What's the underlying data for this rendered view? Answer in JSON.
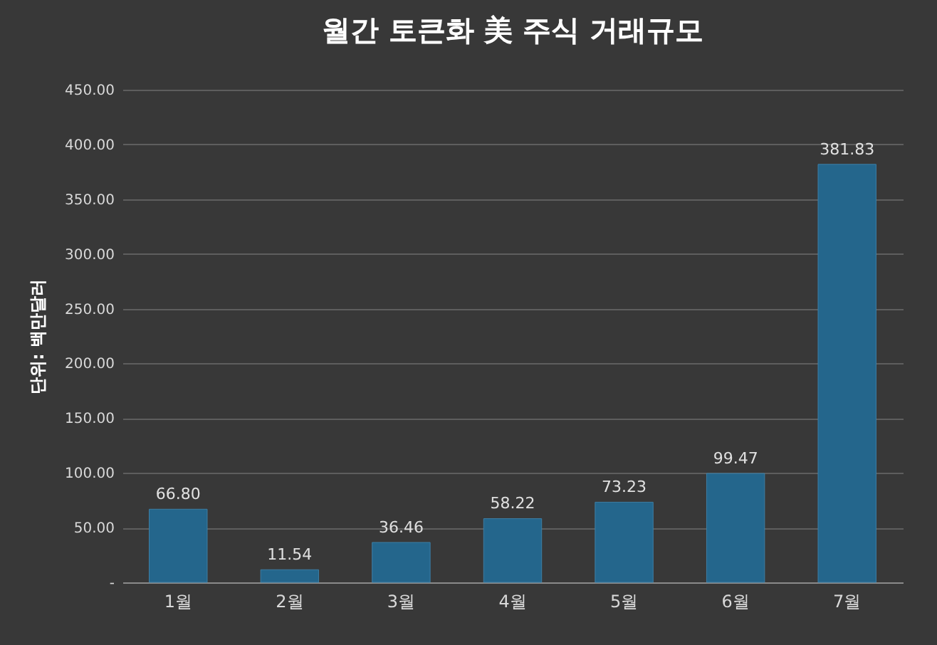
{
  "chart_data": {
    "type": "bar",
    "title": "월간 토큰화 美 주식 거래규모",
    "ylabel": "단위: 백만달러",
    "categories": [
      "1월",
      "2월",
      "3월",
      "4월",
      "5월",
      "6월",
      "7월"
    ],
    "values": [
      66.8,
      11.54,
      36.46,
      58.22,
      73.23,
      99.47,
      381.83
    ],
    "value_labels": [
      "66.80",
      "11.54",
      "36.46",
      "58.22",
      "73.23",
      "99.47",
      "381.83"
    ],
    "color": "#24668c",
    "ylim": [
      0,
      450
    ],
    "yticks": [
      {
        "value": 0,
        "label": "-"
      },
      {
        "value": 50,
        "label": "50.00"
      },
      {
        "value": 100,
        "label": "100.00"
      },
      {
        "value": 150,
        "label": "150.00"
      },
      {
        "value": 200,
        "label": "200.00"
      },
      {
        "value": 250,
        "label": "250.00"
      },
      {
        "value": 300,
        "label": "300.00"
      },
      {
        "value": 350,
        "label": "350.00"
      },
      {
        "value": 400,
        "label": "400.00"
      },
      {
        "value": 450,
        "label": "450.00"
      }
    ],
    "grid": true
  }
}
